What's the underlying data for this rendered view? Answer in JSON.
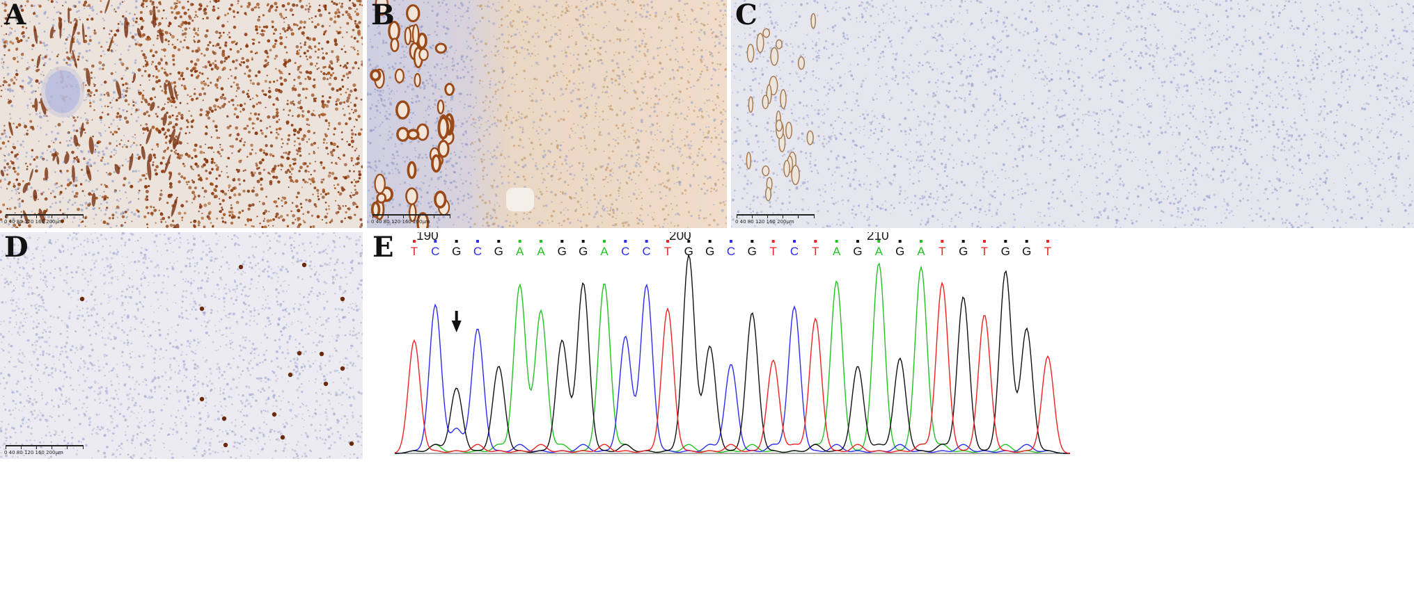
{
  "panels": {
    "a": {
      "letter": "A",
      "scale_labels": "0  40  80  120  160  200μm"
    },
    "b": {
      "letter": "B",
      "scale_labels": "0  40  80  120  160  200μm"
    },
    "c": {
      "letter": "C",
      "scale_labels": "0  40  80  120  160  200μm"
    },
    "d": {
      "letter": "D",
      "scale_labels": "0  40  80  120  160  200μm"
    },
    "e": {
      "letter": "E",
      "positions": [
        "190",
        "200",
        "210"
      ],
      "bases": [
        "T",
        "C",
        "G",
        "C",
        "G",
        "A",
        "A",
        "G",
        "G",
        "A",
        "C",
        "C",
        "T",
        "G",
        "G",
        "C",
        "G",
        "T",
        "C",
        "T",
        "A",
        "G",
        "A",
        "G",
        "A",
        "T",
        "G",
        "T",
        "G",
        "G",
        "T"
      ],
      "base_colors": {
        "A": "#22c322",
        "C": "#2c2cf2",
        "G": "#111111",
        "T": "#ee2222"
      },
      "peak_heights": [
        0.57,
        0.75,
        0.33,
        0.63,
        0.44,
        0.85,
        0.72,
        0.57,
        0.86,
        0.86,
        0.59,
        0.85,
        0.73,
        1.0,
        0.54,
        0.45,
        0.71,
        0.47,
        0.74,
        0.68,
        0.87,
        0.44,
        0.96,
        0.48,
        0.94,
        0.86,
        0.79,
        0.7,
        0.92,
        0.63,
        0.49
      ]
    }
  },
  "colors": {
    "tissue_bg": "#e8e6ee",
    "hematoxylin": "#8d96c4",
    "dab_strong": "#7a3a12",
    "dab_light": "#c89a6c"
  }
}
